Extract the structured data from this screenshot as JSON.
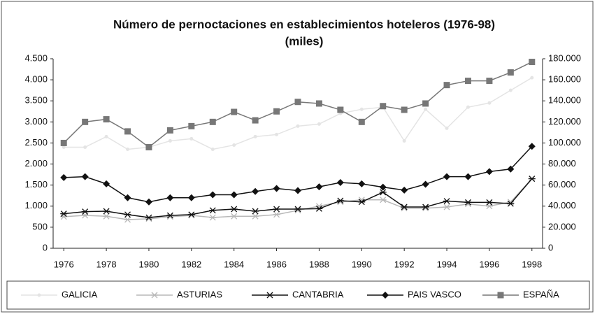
{
  "chart_data": {
    "type": "line",
    "title": "Número de pernoctaciones en establecimientos hoteleros (1976-98)",
    "subtitle": "(miles)",
    "x": [
      1976,
      1977,
      1978,
      1979,
      1980,
      1981,
      1982,
      1983,
      1984,
      1985,
      1986,
      1987,
      1988,
      1989,
      1990,
      1991,
      1992,
      1993,
      1994,
      1995,
      1996,
      1997,
      1998
    ],
    "xlim": [
      1975.5,
      1998.5
    ],
    "xticks": [
      1976,
      1978,
      1980,
      1982,
      1984,
      1986,
      1988,
      1990,
      1992,
      1994,
      1996,
      1998
    ],
    "ylim": [
      0,
      4500
    ],
    "yticks": [
      0,
      500,
      {
        "value": 1000,
        "label": "1.000"
      },
      {
        "value": 1500,
        "label": "1.500"
      },
      {
        "value": 2000,
        "label": "2.000"
      },
      {
        "value": 2500,
        "label": "2.500"
      },
      {
        "value": 3000,
        "label": "3.000"
      },
      {
        "value": 3500,
        "label": "3.500"
      },
      {
        "value": 4000,
        "label": "4.000"
      },
      {
        "value": 4500,
        "label": "4.500"
      }
    ],
    "y2lim": [
      0,
      180000
    ],
    "y2ticks": [
      0,
      {
        "value": 20000,
        "label": "20.000"
      },
      {
        "value": 40000,
        "label": "40.000"
      },
      {
        "value": 60000,
        "label": "60.000"
      },
      {
        "value": 80000,
        "label": "80.000"
      },
      {
        "value": 100000,
        "label": "100.000"
      },
      {
        "value": 120000,
        "label": "120.000"
      },
      {
        "value": 140000,
        "label": "140.000"
      },
      {
        "value": 160000,
        "label": "160.000"
      },
      {
        "value": 180000,
        "label": "180.000"
      }
    ],
    "grid": false,
    "legend": "bottom",
    "series": [
      {
        "name": "GALICIA",
        "color": "#e4e4e4",
        "marker": "dot",
        "values": [
          2400,
          2400,
          2650,
          2350,
          2400,
          2550,
          2600,
          2350,
          2450,
          2650,
          2700,
          2900,
          2950,
          3200,
          3300,
          3350,
          2550,
          3300,
          2850,
          3350,
          3450,
          3750,
          4050
        ]
      },
      {
        "name": "ASTURIAS",
        "color": "#b8b8b8",
        "marker": "star",
        "values": [
          750,
          780,
          760,
          680,
          700,
          750,
          780,
          730,
          760,
          760,
          800,
          900,
          1000,
          1100,
          1150,
          1150,
          950,
          950,
          980,
          1050,
          1000,
          1100,
          1650
        ]
      },
      {
        "name": "CANTABRIA",
        "color": "#111111",
        "marker": "star",
        "values": [
          820,
          870,
          880,
          800,
          730,
          780,
          800,
          900,
          930,
          880,
          930,
          930,
          940,
          1130,
          1100,
          1330,
          980,
          980,
          1120,
          1090,
          1090,
          1060,
          1650
        ]
      },
      {
        "name": "PAIS VASCO",
        "color": "#111111",
        "marker": "diamond",
        "values": [
          1680,
          1700,
          1530,
          1200,
          1100,
          1200,
          1200,
          1270,
          1270,
          1350,
          1420,
          1370,
          1460,
          1560,
          1530,
          1450,
          1380,
          1520,
          1700,
          1700,
          1820,
          1880,
          2420
        ]
      },
      {
        "name": "ESPAÑA",
        "color": "#777777",
        "marker": "square",
        "axis": "y2",
        "values": [
          100000,
          120000,
          122500,
          111000,
          96000,
          112000,
          116000,
          120000,
          129500,
          121500,
          130000,
          139000,
          137500,
          131500,
          120000,
          135000,
          131500,
          137500,
          155000,
          159000,
          159000,
          167000,
          177000
        ]
      }
    ]
  }
}
